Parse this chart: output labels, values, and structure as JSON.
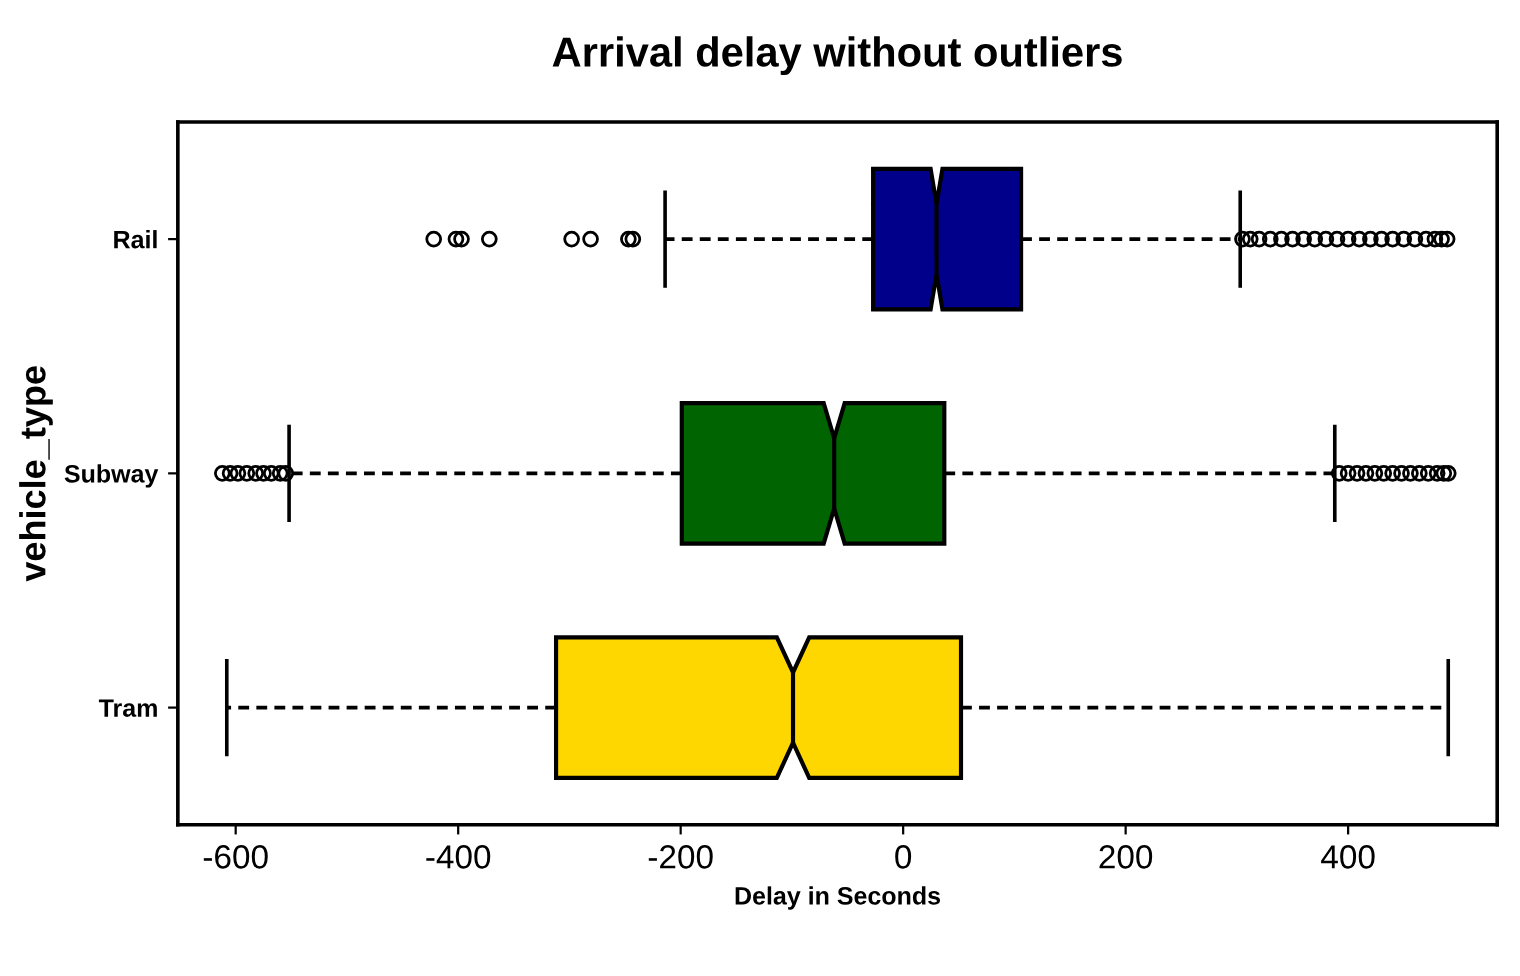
{
  "chart_data": {
    "type": "box",
    "orientation": "horizontal",
    "title": "Arrival delay without outliers",
    "xlabel": "Delay in Seconds",
    "ylabel": "vehicle_type",
    "categories": [
      "Rail",
      "Subway",
      "Tram"
    ],
    "colors": [
      "#00008b",
      "#006400",
      "#ffd700"
    ],
    "boxes": [
      {
        "low": -214,
        "q1": -27,
        "median": 30,
        "q3": 106,
        "high": 303,
        "outliers": [
          -422,
          -402,
          -397,
          -372,
          -298,
          -281,
          -247,
          -243,
          305,
          312,
          320,
          330,
          340,
          350,
          360,
          370,
          380,
          390,
          400,
          410,
          420,
          430,
          440,
          450,
          460,
          470,
          478,
          484,
          489
        ]
      },
      {
        "low": -552,
        "q1": -199,
        "median": -62,
        "q3": 37,
        "high": 388,
        "outliers": [
          -612,
          -605,
          -598,
          -590,
          -582,
          -575,
          -568,
          -560,
          -555,
          392,
          400,
          408,
          416,
          424,
          432,
          440,
          448,
          456,
          464,
          472,
          480,
          486,
          490
        ]
      },
      {
        "low": -608,
        "q1": -312,
        "median": -99,
        "q3": 52,
        "high": 490
      }
    ],
    "xlim": [
      -652,
      534
    ],
    "xticks": [
      -600,
      -400,
      -200,
      0,
      200,
      400
    ],
    "grid": false,
    "legend": false
  }
}
